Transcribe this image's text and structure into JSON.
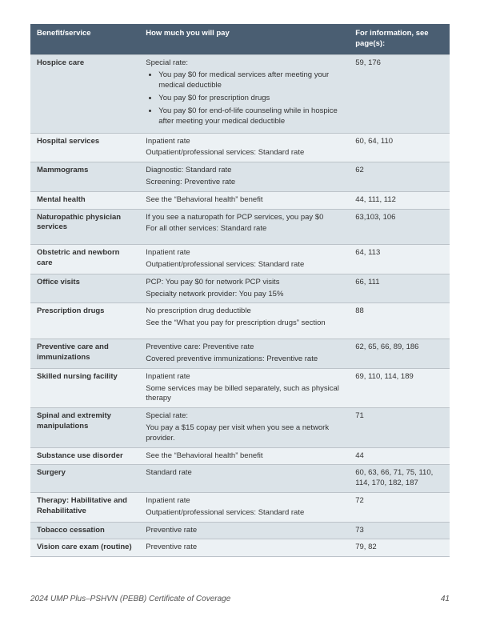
{
  "colors": {
    "header_bg": "#4a5e72",
    "header_fg": "#ffffff",
    "row_odd": "#dbe3e8",
    "row_even": "#ecf1f4",
    "border": "#bcc3c9",
    "text": "#333333",
    "footer": "#555555"
  },
  "typography": {
    "body_fontsize_pt": 9.5,
    "header_fontsize_pt": 9.5,
    "footer_fontsize_pt": 10,
    "line_height": 1.35,
    "font_family": "Segoe UI"
  },
  "table": {
    "type": "table",
    "column_widths_pct": [
      26,
      50,
      24
    ],
    "columns": [
      "Benefit/service",
      "How much you will pay",
      "For information, see page(s):"
    ],
    "rows": [
      {
        "benefit": "Hospice care",
        "pay_intro": "Special rate:",
        "pay_bullets": [
          "You pay $0 for medical services after meeting your medical deductible",
          "You pay $0 for prescription drugs",
          "You pay $0 for end-of-life counseling while in hospice after meeting your medical deductible"
        ],
        "pages": "59, 176"
      },
      {
        "benefit": "Hospital services",
        "pay_lines": [
          "Inpatient rate",
          "Outpatient/professional services: Standard rate"
        ],
        "pages": "60, 64, 110"
      },
      {
        "benefit": "Mammograms",
        "pay_lines": [
          "Diagnostic: Standard rate",
          "Screening: Preventive rate"
        ],
        "pages": "62"
      },
      {
        "benefit": "Mental health",
        "pay_lines": [
          "See the “Behavioral health” benefit"
        ],
        "pages": "44, 111, 112"
      },
      {
        "benefit": "Naturopathic physician services",
        "pay_lines": [
          "If you see a naturopath for PCP services, you pay $0",
          "For all other services: Standard rate"
        ],
        "pages": "63,103, 106",
        "extra_bottom_pad": true
      },
      {
        "benefit": "Obstetric and newborn care",
        "pay_lines": [
          "Inpatient rate",
          "Outpatient/professional services: Standard rate"
        ],
        "pages": "64, 113"
      },
      {
        "benefit": "Office visits",
        "pay_lines": [
          "PCP: You pay $0 for network PCP visits",
          "Specialty network provider: You pay 15%"
        ],
        "pages": "66, 111"
      },
      {
        "benefit": "Prescription drugs",
        "pay_lines": [
          "No prescription drug deductible",
          "See the “What you pay for prescription drugs” section"
        ],
        "pages": "88",
        "extra_bottom_pad": true
      },
      {
        "benefit": "Preventive care and immunizations",
        "pay_lines": [
          "Preventive care: Preventive rate",
          "Covered preventive immunizations: Preventive rate"
        ],
        "pages": "62, 65, 66, 89, 186"
      },
      {
        "benefit": "Skilled nursing facility",
        "pay_lines": [
          "Inpatient rate",
          "Some services may be billed separately, such as physical therapy"
        ],
        "pages": "69, 110, 114, 189"
      },
      {
        "benefit": "Spinal and extremity manipulations",
        "pay_lines": [
          "Special rate:",
          "You pay a $15 copay per visit when you see a network provider."
        ],
        "pages": "71"
      },
      {
        "benefit": "Substance use disorder",
        "pay_lines": [
          "See the “Behavioral health” benefit"
        ],
        "pages": "44"
      },
      {
        "benefit": "Surgery",
        "pay_lines": [
          "Standard rate"
        ],
        "pages": "60, 63, 66, 71, 75, 110, 114, 170, 182, 187"
      },
      {
        "benefit": "Therapy: Habilitative and Rehabilitative",
        "pay_lines": [
          "Inpatient rate",
          "Outpatient/professional services: Standard rate"
        ],
        "pages": "72"
      },
      {
        "benefit": "Tobacco cessation",
        "pay_lines": [
          "Preventive rate"
        ],
        "pages": "73"
      },
      {
        "benefit": "Vision care exam (routine)",
        "pay_lines": [
          "Preventive rate"
        ],
        "pages": "79, 82"
      }
    ]
  },
  "footer": {
    "doc_title": "2024 UMP Plus–PSHVN (PEBB) Certificate of Coverage",
    "page_number": "41"
  }
}
